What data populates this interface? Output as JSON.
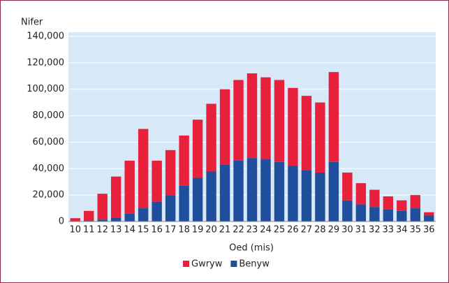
{
  "chart_data": {
    "type": "stacked_bar",
    "y_label": "Nifer",
    "x_label": "Oed (mis)",
    "categories": [
      "10",
      "11",
      "12",
      "13",
      "14",
      "15",
      "16",
      "17",
      "18",
      "19",
      "20",
      "21",
      "22",
      "23",
      "24",
      "25",
      "26",
      "27",
      "28",
      "29",
      "30",
      "31",
      "32",
      "33",
      "34",
      "35",
      "36"
    ],
    "series": [
      {
        "name": "Benyw",
        "color": "#1f4e9c",
        "values": [
          0,
          500,
          1500,
          3000,
          6000,
          10000,
          15000,
          20000,
          27000,
          33000,
          38000,
          43000,
          46000,
          48000,
          47000,
          45000,
          42000,
          39000,
          37000,
          45000,
          16000,
          13000,
          11000,
          9000,
          8000,
          10000,
          4500
        ]
      },
      {
        "name": "Gwryw",
        "color": "#e8203c",
        "values": [
          2500,
          7500,
          19500,
          31000,
          40000,
          60000,
          31000,
          34000,
          38000,
          44000,
          51000,
          57000,
          61000,
          64000,
          62000,
          62000,
          59000,
          56000,
          53000,
          68000,
          21000,
          16000,
          13000,
          10000,
          8000,
          10000,
          2500
        ]
      }
    ],
    "legend_order": [
      "Gwryw",
      "Benyw"
    ],
    "ylim": [
      0,
      140000
    ],
    "yticks": [
      0,
      {
        "value": 20000,
        "label": "20,000"
      },
      {
        "value": 40000,
        "label": "40,000"
      },
      {
        "value": 60000,
        "label": "60,000"
      },
      {
        "value": 80000,
        "label": "80,000"
      },
      {
        "value": 100000,
        "label": "100,000"
      },
      {
        "value": 120000,
        "label": "120,000"
      },
      {
        "value": 140000,
        "label": "140,000"
      }
    ],
    "grid": true,
    "legend": "bottom"
  }
}
